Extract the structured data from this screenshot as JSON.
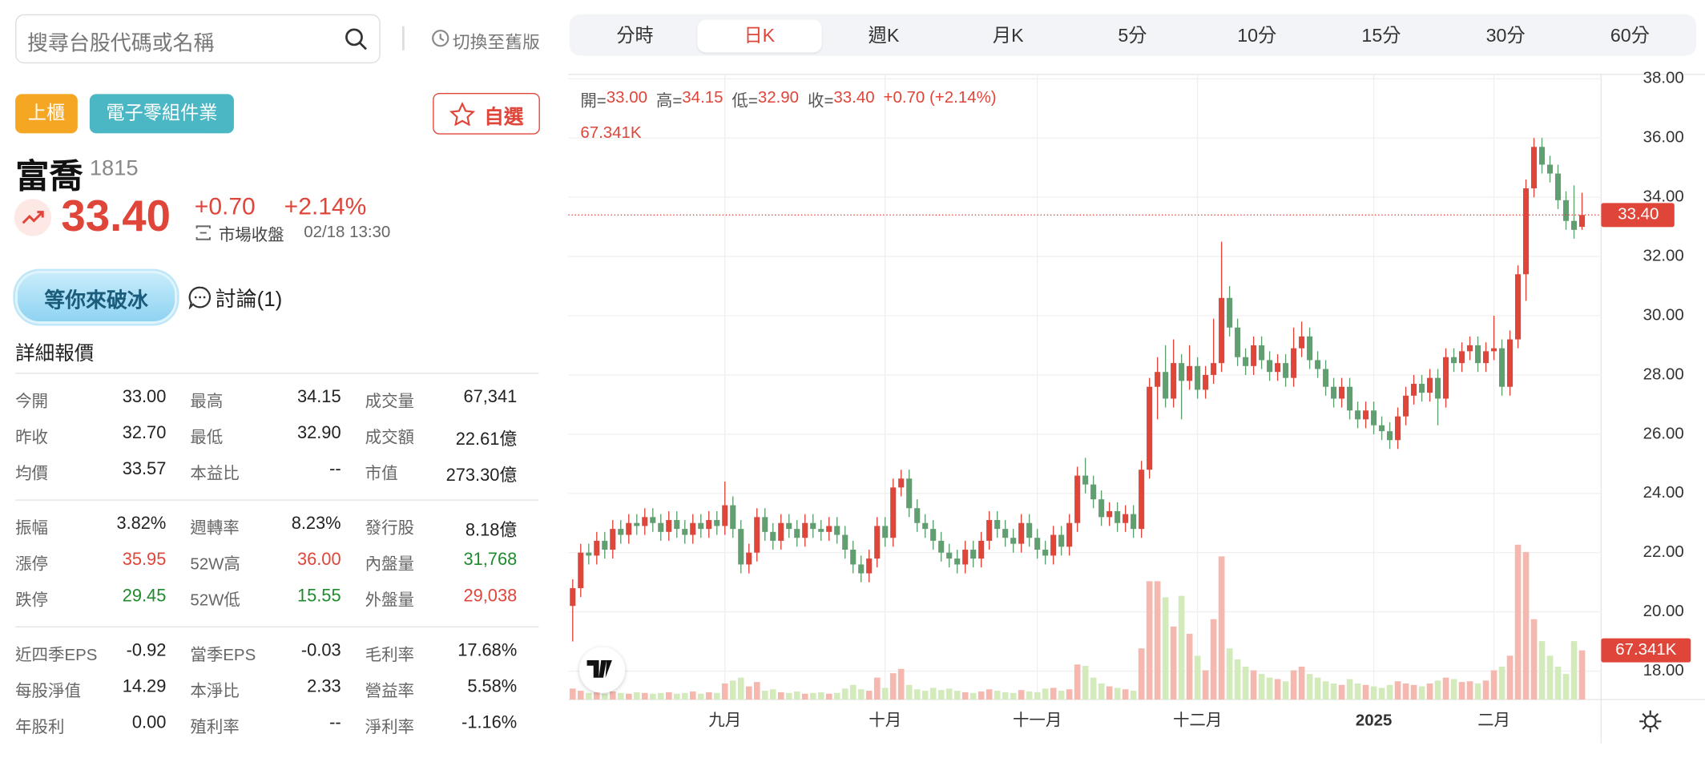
{
  "search": {
    "placeholder": "搜尋台股代碼或名稱"
  },
  "old_version": "切換至舊版",
  "stock": {
    "tags": [
      "上櫃",
      "電子零組件業"
    ],
    "watch": "自選",
    "name": "富喬",
    "code": "1815",
    "price": "33.40",
    "change": "+0.70",
    "change_pct": "+2.14%",
    "status": "市場收盤",
    "time": "02/18 13:30",
    "badge": "等你來破冰",
    "discuss": "討論(1)"
  },
  "quote": {
    "title": "詳細報價",
    "groups": [
      [
        [
          "今開",
          "33.00",
          "最高",
          "34.15",
          "成交量",
          "67,341"
        ],
        [
          "昨收",
          "32.70",
          "最低",
          "32.90",
          "成交額",
          "22.61億"
        ],
        [
          "均價",
          "33.57",
          "本益比",
          "--",
          "市值",
          "273.30億"
        ]
      ],
      [
        [
          "振幅",
          "3.82%",
          "週轉率",
          "8.23%",
          "發行股",
          "8.18億"
        ],
        [
          "漲停",
          "35.95",
          "52W高",
          "36.00",
          "內盤量",
          "31,768"
        ],
        [
          "跌停",
          "29.45",
          "52W低",
          "15.55",
          "外盤量",
          "29,038"
        ]
      ],
      [
        [
          "近四季EPS",
          "-0.92",
          "當季EPS",
          "-0.03",
          "毛利率",
          "17.68%"
        ],
        [
          "每股淨值",
          "14.29",
          "本淨比",
          "2.33",
          "營益率",
          "5.58%"
        ],
        [
          "年股利",
          "0.00",
          "殖利率",
          "--",
          "淨利率",
          "-1.16%"
        ]
      ]
    ]
  },
  "tabs": {
    "items": [
      "分時",
      "日K",
      "週K",
      "月K",
      "5分",
      "10分",
      "15分",
      "30分",
      "60分"
    ],
    "active": 1
  },
  "chart_data": {
    "type": "candlestick",
    "info": {
      "items": [
        {
          "label": "開=",
          "value": "33.00"
        },
        {
          "label": "高=",
          "value": "34.15"
        },
        {
          "label": "低=",
          "value": "32.90"
        },
        {
          "label": "收=",
          "value": "33.40"
        }
      ],
      "change": "+0.70 (+2.14%)",
      "volume": "67.341K"
    },
    "categories": [
      null,
      null,
      null,
      null,
      null,
      null,
      null,
      null,
      null,
      null,
      null,
      null,
      null,
      null,
      null,
      null,
      null,
      null,
      null,
      "九月",
      null,
      null,
      null,
      null,
      null,
      null,
      null,
      null,
      null,
      null,
      null,
      null,
      null,
      null,
      null,
      null,
      null,
      null,
      null,
      "十月",
      null,
      null,
      null,
      null,
      null,
      null,
      null,
      null,
      null,
      null,
      null,
      null,
      null,
      null,
      null,
      null,
      null,
      null,
      "十一月",
      null,
      null,
      null,
      null,
      null,
      null,
      null,
      null,
      null,
      null,
      null,
      null,
      null,
      null,
      null,
      null,
      null,
      null,
      null,
      "十二月",
      null,
      null,
      null,
      null,
      null,
      null,
      null,
      null,
      null,
      null,
      null,
      null,
      null,
      null,
      null,
      null,
      null,
      null,
      null,
      null,
      null,
      "2025",
      null,
      null,
      null,
      null,
      null,
      null,
      null,
      null,
      null,
      null,
      null,
      null,
      null,
      null,
      "二月",
      null,
      null,
      null,
      null,
      null,
      null,
      null,
      null,
      null,
      null,
      null
    ],
    "open": [
      20.2,
      20.8,
      22.0,
      21.9,
      22.4,
      22.1,
      22.8,
      22.6,
      23.0,
      22.9,
      23.2,
      23.0,
      22.7,
      23.1,
      22.8,
      22.6,
      23.0,
      22.8,
      23.1,
      22.9,
      23.6,
      22.8,
      21.6,
      22.0,
      23.2,
      22.7,
      22.4,
      23.0,
      22.8,
      22.5,
      23.0,
      22.8,
      22.7,
      22.9,
      22.6,
      22.1,
      21.6,
      21.3,
      21.8,
      22.9,
      22.5,
      24.2,
      24.5,
      23.5,
      23.0,
      22.8,
      22.4,
      22.0,
      21.8,
      21.6,
      22.1,
      21.8,
      22.4,
      23.1,
      22.8,
      22.5,
      22.3,
      23.0,
      22.5,
      22.1,
      21.9,
      22.6,
      22.2,
      23.0,
      24.6,
      24.3,
      23.8,
      23.2,
      23.4,
      23.0,
      23.3,
      22.8,
      24.8,
      27.6,
      28.1,
      27.2,
      28.4,
      27.8,
      28.3,
      27.5,
      28.0,
      28.4,
      30.6,
      29.6,
      28.6,
      28.3,
      29.0,
      28.5,
      28.1,
      28.4,
      27.9,
      28.9,
      29.3,
      28.5,
      28.2,
      27.6,
      27.2,
      27.6,
      26.8,
      26.5,
      26.8,
      26.3,
      26.1,
      25.8,
      26.6,
      27.3,
      27.7,
      27.4,
      27.9,
      27.2,
      28.6,
      28.4,
      28.8,
      29.0,
      28.4,
      28.8,
      28.9,
      27.6,
      29.2,
      31.4,
      34.3,
      35.7,
      35.1,
      34.8,
      33.9,
      33.2,
      33.0
    ],
    "high": [
      21.1,
      22.3,
      22.3,
      22.7,
      22.7,
      23.1,
      23.1,
      23.3,
      23.3,
      23.5,
      23.5,
      23.3,
      23.4,
      23.4,
      23.1,
      23.3,
      23.3,
      23.4,
      23.4,
      24.4,
      23.9,
      23.1,
      22.3,
      23.5,
      23.5,
      23.0,
      23.3,
      23.3,
      23.1,
      23.3,
      23.3,
      23.1,
      23.2,
      23.2,
      22.9,
      22.4,
      21.9,
      22.1,
      23.2,
      23.2,
      24.5,
      24.8,
      24.8,
      23.8,
      23.3,
      23.1,
      22.7,
      22.3,
      22.1,
      22.4,
      22.4,
      22.7,
      23.4,
      23.4,
      23.1,
      22.8,
      23.3,
      23.3,
      22.8,
      22.4,
      22.9,
      22.9,
      23.3,
      24.9,
      25.2,
      24.6,
      24.1,
      23.7,
      23.7,
      23.6,
      23.6,
      25.1,
      27.9,
      28.6,
      29.0,
      29.2,
      28.7,
      29.0,
      28.6,
      28.3,
      29.9,
      32.5,
      31.0,
      29.9,
      28.9,
      29.3,
      29.3,
      28.8,
      28.7,
      28.7,
      29.6,
      29.8,
      29.6,
      28.8,
      28.5,
      27.9,
      27.9,
      27.9,
      27.1,
      27.1,
      27.1,
      26.6,
      26.4,
      26.9,
      27.6,
      28.0,
      28.0,
      28.2,
      28.2,
      28.9,
      28.9,
      29.1,
      29.3,
      29.3,
      29.1,
      30.0,
      29.2,
      29.5,
      31.7,
      34.6,
      36.0,
      36.0,
      35.4,
      35.1,
      34.2,
      34.4,
      34.15
    ],
    "low": [
      19.0,
      20.5,
      21.6,
      21.6,
      21.8,
      21.8,
      22.3,
      22.3,
      22.6,
      22.6,
      22.7,
      22.4,
      22.4,
      22.5,
      22.3,
      22.3,
      22.5,
      22.5,
      22.6,
      22.6,
      22.5,
      21.3,
      21.3,
      21.7,
      22.4,
      22.1,
      22.1,
      22.5,
      22.2,
      22.2,
      22.5,
      22.4,
      22.4,
      22.3,
      21.8,
      21.3,
      21.0,
      21.0,
      21.5,
      22.2,
      22.2,
      23.9,
      23.2,
      22.7,
      22.5,
      22.1,
      21.7,
      21.5,
      21.3,
      21.3,
      21.5,
      21.5,
      22.1,
      22.5,
      22.2,
      22.0,
      22.0,
      22.2,
      21.8,
      21.6,
      21.6,
      21.9,
      21.9,
      22.7,
      24.0,
      23.5,
      22.9,
      22.9,
      22.7,
      22.7,
      22.5,
      22.5,
      24.5,
      26.5,
      26.9,
      26.9,
      26.5,
      27.5,
      27.2,
      27.2,
      27.7,
      28.1,
      29.3,
      28.3,
      28.0,
      28.0,
      28.2,
      27.8,
      27.8,
      27.6,
      27.6,
      28.6,
      28.2,
      27.9,
      27.3,
      26.9,
      26.9,
      26.5,
      26.2,
      26.2,
      26.0,
      25.8,
      25.5,
      25.5,
      26.3,
      27.0,
      27.1,
      27.1,
      26.3,
      26.9,
      28.1,
      28.1,
      28.5,
      28.1,
      28.1,
      28.5,
      27.3,
      27.3,
      28.9,
      30.5,
      34.0,
      34.8,
      34.5,
      33.6,
      32.9,
      32.6,
      32.9
    ],
    "close": [
      20.8,
      22.0,
      21.9,
      22.4,
      22.1,
      22.8,
      22.6,
      23.0,
      22.9,
      23.2,
      23.0,
      22.7,
      23.1,
      22.8,
      22.6,
      23.0,
      22.8,
      23.1,
      22.9,
      23.6,
      22.8,
      21.6,
      22.0,
      23.2,
      22.7,
      22.4,
      23.0,
      22.8,
      22.5,
      23.0,
      22.8,
      22.7,
      22.9,
      22.6,
      22.1,
      21.6,
      21.3,
      21.8,
      22.9,
      22.5,
      24.2,
      24.5,
      23.5,
      23.0,
      22.8,
      22.4,
      22.0,
      21.8,
      21.6,
      22.1,
      21.8,
      22.4,
      23.1,
      22.8,
      22.5,
      22.3,
      23.0,
      22.5,
      22.1,
      21.9,
      22.6,
      22.2,
      23.0,
      24.6,
      24.3,
      23.8,
      23.2,
      23.4,
      23.0,
      23.3,
      22.8,
      24.8,
      27.6,
      28.1,
      27.2,
      28.4,
      27.8,
      28.3,
      27.5,
      28.0,
      28.4,
      30.6,
      29.6,
      28.6,
      28.3,
      29.0,
      28.5,
      28.1,
      28.4,
      27.9,
      28.9,
      29.3,
      28.5,
      28.2,
      27.6,
      27.2,
      27.6,
      26.8,
      26.5,
      26.8,
      26.3,
      26.1,
      25.8,
      26.6,
      27.3,
      27.7,
      27.4,
      27.9,
      27.2,
      28.6,
      28.4,
      28.8,
      29.0,
      28.4,
      28.8,
      28.9,
      27.6,
      29.2,
      31.4,
      34.3,
      35.7,
      35.1,
      34.8,
      33.9,
      33.2,
      32.9,
      33.4
    ],
    "volume": [
      15000,
      12000,
      9000,
      10000,
      8000,
      11000,
      9000,
      8000,
      10000,
      9000,
      8000,
      9000,
      10000,
      8000,
      9000,
      11000,
      8000,
      10000,
      9000,
      22000,
      26000,
      30000,
      18000,
      24000,
      12000,
      14000,
      10000,
      9000,
      11000,
      8000,
      9000,
      10000,
      8000,
      9000,
      15000,
      20000,
      14000,
      12000,
      30000,
      16000,
      36000,
      42000,
      20000,
      14000,
      12000,
      16000,
      13000,
      15000,
      12000,
      10000,
      9000,
      11000,
      14000,
      12000,
      10000,
      9000,
      13000,
      11000,
      10000,
      15000,
      16000,
      12000,
      14000,
      48000,
      46000,
      30000,
      22000,
      18000,
      16000,
      14000,
      12000,
      70000,
      162000,
      162000,
      140000,
      100000,
      142000,
      90000,
      60000,
      40000,
      110000,
      196000,
      70000,
      55000,
      45000,
      40000,
      35000,
      30000,
      28000,
      25000,
      40000,
      45000,
      35000,
      30000,
      25000,
      22000,
      20000,
      28000,
      22000,
      20000,
      18000,
      16000,
      20000,
      25000,
      22000,
      20000,
      18000,
      22000,
      26000,
      30000,
      28000,
      24000,
      25000,
      22000,
      26000,
      40000,
      45000,
      60000,
      212000,
      202000,
      110000,
      80000,
      60000,
      45000,
      35000,
      80000,
      67341
    ],
    "ylim": [
      17.04,
      38.15
    ],
    "yticks": [
      {
        "value": 18,
        "label": "18.00"
      },
      {
        "value": 20,
        "label": "20.00"
      },
      {
        "value": 22,
        "label": "22.00"
      },
      {
        "value": 24,
        "label": "24.00"
      },
      {
        "value": 26,
        "label": "26.00"
      },
      {
        "value": 28,
        "label": "28.00"
      },
      {
        "value": 30,
        "label": "30.00"
      },
      {
        "value": 32,
        "label": "32.00"
      },
      {
        "value": 34,
        "label": "34.00"
      },
      {
        "value": 36,
        "label": "36.00"
      },
      {
        "value": 38,
        "label": "38.00"
      }
    ],
    "volume_lim": [
      0,
      856000
    ],
    "price_marker": {
      "value": 33.4,
      "label": "33.40"
    },
    "volume_marker": {
      "value": 67341,
      "label": "67.341K"
    },
    "up_color": "#e0453a",
    "down_color": "#5f9f70",
    "volume_up_color": "#f6b7ae",
    "volume_down_color": "#d3ebba",
    "grid": true
  }
}
